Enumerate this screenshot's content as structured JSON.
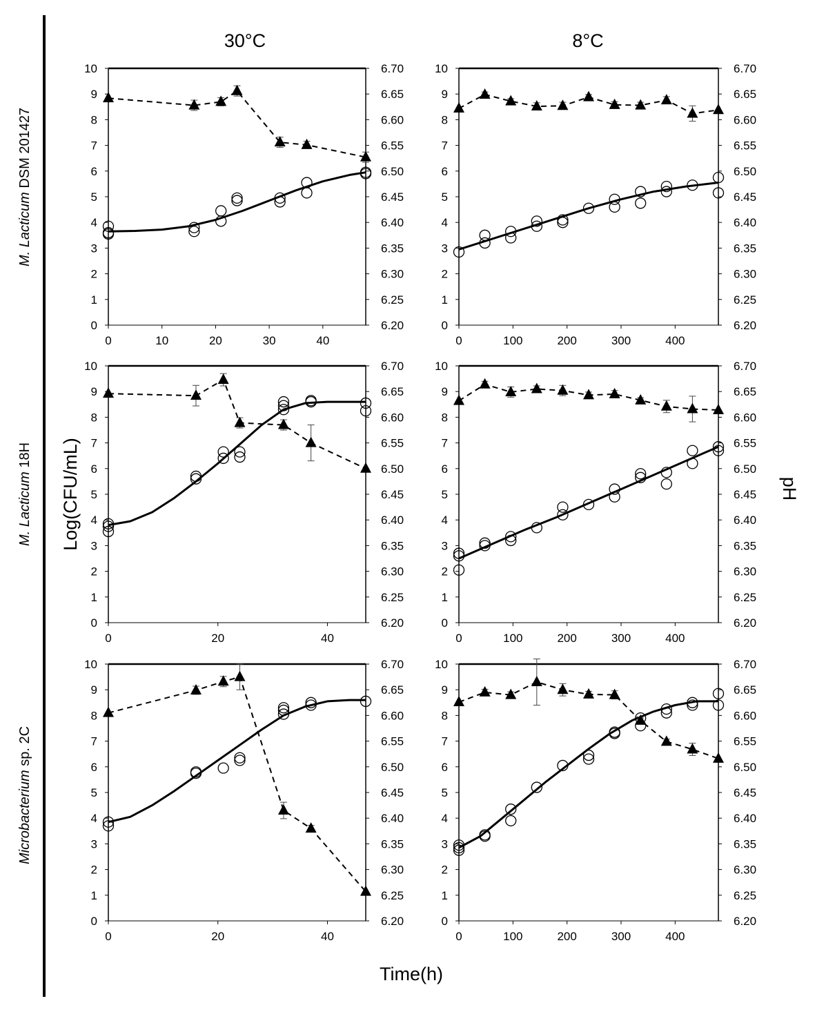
{
  "figure": {
    "column_titles": [
      "30°C",
      "8°C"
    ],
    "row_labels": [
      {
        "italic": "M. Lacticum",
        "rest": " DSM 201427"
      },
      {
        "italic": "M. Lacticum",
        "rest": " 18H"
      },
      {
        "italic": "Microbacterium",
        "rest": " sp. 2C"
      }
    ],
    "y_left_label": "Log(CFU/mL)",
    "y_right_label": "pH",
    "x_label": "Time(h)"
  },
  "chart_data": [
    {
      "type": "scatter",
      "panel": "DSM 201427 at 30°C",
      "xlim": [
        0,
        48
      ],
      "xticks": [
        0,
        10,
        20,
        30,
        40
      ],
      "ylim": [
        0,
        10
      ],
      "y2lim": [
        6.2,
        6.7
      ],
      "series": [
        {
          "name": "Log(CFU/mL) observed",
          "marker": "open-circle",
          "x": [
            0,
            0,
            0,
            16,
            16,
            21,
            21,
            24,
            24,
            32,
            32,
            37,
            37,
            48,
            48
          ],
          "y": [
            3.85,
            3.6,
            3.55,
            3.8,
            3.65,
            4.05,
            4.45,
            4.95,
            4.85,
            4.95,
            4.8,
            5.55,
            5.15,
            5.95,
            5.9
          ]
        },
        {
          "name": "Log(CFU/mL) fitted",
          "line": "solid",
          "x": [
            0,
            5,
            10,
            15,
            20,
            25,
            30,
            35,
            40,
            45,
            48
          ],
          "y": [
            3.65,
            3.67,
            3.72,
            3.85,
            4.1,
            4.45,
            4.85,
            5.25,
            5.6,
            5.85,
            5.95
          ]
        },
        {
          "name": "pH",
          "marker": "filled-triangle",
          "line": "dashed",
          "x": [
            0,
            16,
            21,
            24,
            32,
            37,
            48
          ],
          "y": [
            6.642,
            6.628,
            6.635,
            6.656,
            6.556,
            6.551,
            6.527
          ],
          "err": [
            0,
            0.01,
            0.008,
            0.01,
            0.01,
            0.007,
            0.01
          ]
        }
      ]
    },
    {
      "type": "scatter",
      "panel": "DSM 201427 at 8°C",
      "xlim": [
        0,
        480
      ],
      "xticks": [
        0,
        100,
        200,
        300,
        400
      ],
      "ylim": [
        0,
        10
      ],
      "y2lim": [
        6.2,
        6.7
      ],
      "series": [
        {
          "name": "Log(CFU/mL) observed",
          "marker": "open-circle",
          "x": [
            0,
            48,
            48,
            96,
            96,
            144,
            144,
            192,
            192,
            240,
            288,
            288,
            336,
            336,
            384,
            384,
            432,
            480,
            480
          ],
          "y": [
            2.85,
            3.5,
            3.2,
            3.65,
            3.4,
            4.05,
            3.85,
            4.1,
            4.0,
            4.55,
            4.9,
            4.6,
            5.2,
            4.75,
            5.4,
            5.2,
            5.45,
            5.75,
            5.15
          ]
        },
        {
          "name": "Log(CFU/mL) fitted",
          "line": "solid",
          "x": [
            0,
            60,
            120,
            180,
            240,
            300,
            360,
            420,
            480
          ],
          "y": [
            2.95,
            3.35,
            3.75,
            4.15,
            4.55,
            4.9,
            5.2,
            5.4,
            5.55
          ]
        },
        {
          "name": "pH",
          "marker": "filled-triangle",
          "line": "dashed",
          "x": [
            0,
            48,
            96,
            144,
            192,
            240,
            288,
            336,
            384,
            432,
            480
          ],
          "y": [
            6.622,
            6.649,
            6.636,
            6.626,
            6.627,
            6.644,
            6.629,
            6.628,
            6.638,
            6.612,
            6.619
          ],
          "err": [
            0,
            0.005,
            0.005,
            0.007,
            0.007,
            0.005,
            0.006,
            0.006,
            0.007,
            0.015,
            0
          ]
        }
      ]
    },
    {
      "type": "scatter",
      "panel": "18H at 30°C",
      "xlim": [
        0,
        47
      ],
      "xticks": [
        0,
        20,
        40
      ],
      "ylim": [
        0,
        10
      ],
      "y2lim": [
        6.2,
        6.7
      ],
      "series": [
        {
          "name": "Log(CFU/mL) observed",
          "marker": "open-circle",
          "x": [
            0,
            0,
            0,
            16,
            16,
            21,
            21,
            24,
            24,
            32,
            32,
            32,
            37,
            37,
            47,
            47
          ],
          "y": [
            3.85,
            3.75,
            3.55,
            5.7,
            5.6,
            6.65,
            6.4,
            6.65,
            6.45,
            8.6,
            8.45,
            8.3,
            8.65,
            8.6,
            8.55,
            8.25
          ]
        },
        {
          "name": "Log(CFU/mL) fitted",
          "line": "solid",
          "x": [
            0,
            4,
            8,
            12,
            16,
            20,
            24,
            28,
            32,
            36,
            40,
            44,
            47
          ],
          "y": [
            3.8,
            3.95,
            4.3,
            4.85,
            5.5,
            6.2,
            6.95,
            7.7,
            8.3,
            8.55,
            8.6,
            8.6,
            8.6
          ]
        },
        {
          "name": "pH",
          "marker": "filled-triangle",
          "line": "dashed",
          "x": [
            0,
            16,
            21,
            24,
            32,
            37,
            47
          ],
          "y": [
            6.646,
            6.642,
            6.673,
            6.589,
            6.585,
            6.55,
            6.5
          ],
          "err": [
            0,
            0.02,
            0.012,
            0.01,
            0.01,
            0.035,
            0
          ]
        }
      ]
    },
    {
      "type": "scatter",
      "panel": "18H at 8°C",
      "xlim": [
        0,
        480
      ],
      "xticks": [
        0,
        100,
        200,
        300,
        400
      ],
      "ylim": [
        0,
        10
      ],
      "y2lim": [
        6.2,
        6.7
      ],
      "series": [
        {
          "name": "Log(CFU/mL) observed",
          "marker": "open-circle",
          "x": [
            0,
            0,
            0,
            48,
            48,
            96,
            96,
            144,
            192,
            192,
            240,
            288,
            288,
            336,
            336,
            384,
            384,
            432,
            432,
            480,
            480
          ],
          "y": [
            2.7,
            2.6,
            2.05,
            3.1,
            3.0,
            3.35,
            3.2,
            3.7,
            4.5,
            4.2,
            4.6,
            5.2,
            4.9,
            5.8,
            5.65,
            5.85,
            5.4,
            6.7,
            6.2,
            6.85,
            6.7
          ]
        },
        {
          "name": "Log(CFU/mL) fitted",
          "line": "solid",
          "x": [
            0,
            60,
            120,
            180,
            240,
            300,
            360,
            420,
            480
          ],
          "y": [
            2.5,
            3.05,
            3.6,
            4.1,
            4.65,
            5.2,
            5.75,
            6.3,
            6.85
          ]
        },
        {
          "name": "pH",
          "marker": "filled-triangle",
          "line": "dashed",
          "x": [
            0,
            48,
            96,
            144,
            192,
            240,
            288,
            336,
            384,
            432,
            480
          ],
          "y": [
            6.632,
            6.664,
            6.649,
            6.655,
            6.652,
            6.643,
            6.645,
            6.633,
            6.621,
            6.616,
            6.614
          ],
          "err": [
            0,
            0.006,
            0.01,
            0.006,
            0.01,
            0.006,
            0.007,
            0.005,
            0.012,
            0.025,
            0
          ]
        }
      ]
    },
    {
      "type": "scatter",
      "panel": "sp. 2C at 30°C",
      "xlim": [
        0,
        47
      ],
      "xticks": [
        0,
        20,
        40
      ],
      "ylim": [
        0,
        10
      ],
      "y2lim": [
        6.2,
        6.7
      ],
      "series": [
        {
          "name": "Log(CFU/mL) observed",
          "marker": "open-circle",
          "x": [
            0,
            0,
            16,
            16,
            21,
            24,
            24,
            32,
            32,
            32,
            37,
            37,
            47
          ],
          "y": [
            3.85,
            3.7,
            5.8,
            5.75,
            5.95,
            6.35,
            6.25,
            8.3,
            8.2,
            8.05,
            8.5,
            8.4,
            8.55
          ]
        },
        {
          "name": "Log(CFU/mL) fitted",
          "line": "solid",
          "x": [
            0,
            4,
            8,
            12,
            16,
            20,
            24,
            28,
            32,
            36,
            40,
            44,
            47
          ],
          "y": [
            3.85,
            4.05,
            4.5,
            5.05,
            5.65,
            6.25,
            6.85,
            7.45,
            8.0,
            8.35,
            8.55,
            8.6,
            8.6
          ]
        },
        {
          "name": "pH",
          "marker": "filled-triangle",
          "line": "dashed",
          "x": [
            0,
            16,
            21,
            24,
            32,
            37,
            47
          ],
          "y": [
            6.605,
            6.649,
            6.666,
            6.675,
            6.415,
            6.38,
            6.257
          ],
          "err": [
            0,
            0.008,
            0.01,
            0.025,
            0.016,
            0.006,
            0
          ]
        }
      ]
    },
    {
      "type": "scatter",
      "panel": "sp. 2C at 8°C",
      "xlim": [
        0,
        480
      ],
      "xticks": [
        0,
        100,
        200,
        300,
        400
      ],
      "ylim": [
        0,
        10
      ],
      "y2lim": [
        6.2,
        6.7
      ],
      "series": [
        {
          "name": "Log(CFU/mL) observed",
          "marker": "open-circle",
          "x": [
            0,
            0,
            0,
            48,
            48,
            96,
            96,
            144,
            192,
            240,
            240,
            288,
            288,
            336,
            336,
            384,
            384,
            432,
            432,
            480,
            480
          ],
          "y": [
            2.95,
            2.85,
            2.75,
            3.35,
            3.3,
            4.35,
            3.9,
            5.2,
            6.05,
            6.45,
            6.3,
            7.35,
            7.3,
            7.9,
            7.6,
            8.25,
            8.1,
            8.5,
            8.4,
            8.85,
            8.4
          ]
        },
        {
          "name": "Log(CFU/mL) fitted",
          "line": "solid",
          "x": [
            0,
            40,
            80,
            120,
            160,
            200,
            240,
            280,
            320,
            360,
            400,
            440,
            480
          ],
          "y": [
            2.85,
            3.3,
            4.0,
            4.7,
            5.4,
            6.05,
            6.7,
            7.3,
            7.8,
            8.15,
            8.4,
            8.55,
            8.55
          ]
        },
        {
          "name": "pH",
          "marker": "filled-triangle",
          "line": "dashed",
          "x": [
            0,
            48,
            96,
            144,
            192,
            240,
            288,
            336,
            384,
            432,
            480
          ],
          "y": [
            6.626,
            6.645,
            6.64,
            6.665,
            6.65,
            6.641,
            6.64,
            6.59,
            6.549,
            6.534,
            6.516
          ],
          "err": [
            0,
            0.006,
            0.006,
            0.045,
            0.012,
            0.006,
            0.008,
            0.005,
            0.005,
            0.012,
            0
          ]
        }
      ]
    }
  ]
}
